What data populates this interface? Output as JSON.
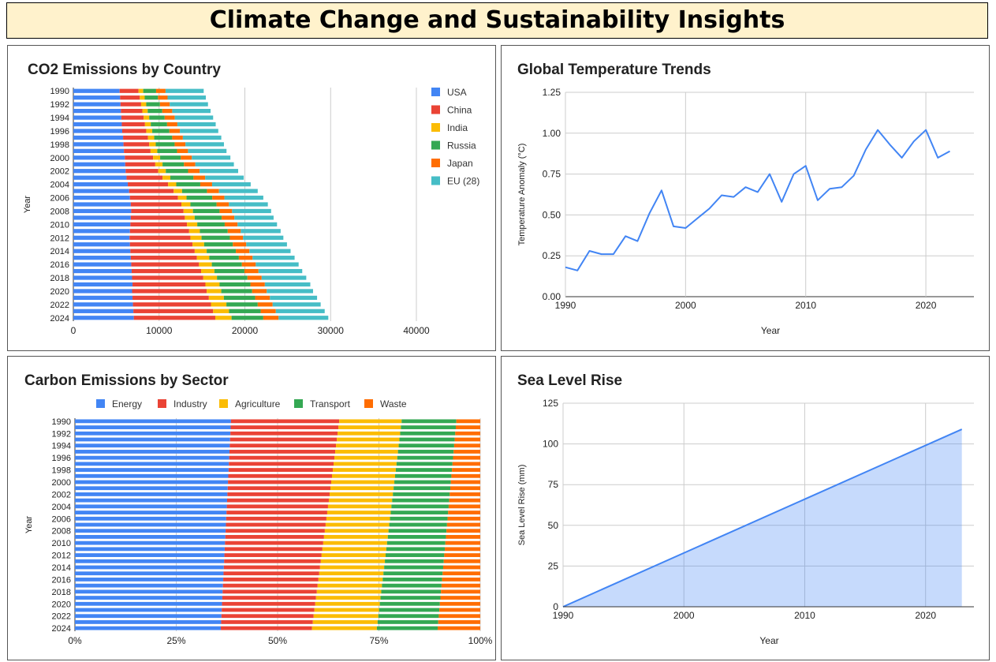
{
  "page_title": "Climate Change and Sustainability Insights",
  "chart_data": [
    {
      "id": "co2",
      "type": "bar",
      "orientation": "horizontal",
      "stacked": true,
      "title": "CO2 Emissions by Country",
      "xlabel": "",
      "ylabel": "Year",
      "categories": [
        "1990",
        "1991",
        "1992",
        "1993",
        "1994",
        "1995",
        "1996",
        "1997",
        "1998",
        "1999",
        "2000",
        "2001",
        "2002",
        "2003",
        "2004",
        "2005",
        "2006",
        "2007",
        "2008",
        "2009",
        "2010",
        "2011",
        "2012",
        "2013",
        "2014",
        "2015",
        "2016",
        "2017",
        "2018",
        "2019",
        "2020",
        "2021",
        "2022",
        "2023",
        "2024"
      ],
      "tick_labels": [
        "1990",
        "1992",
        "1994",
        "1996",
        "1998",
        "2000",
        "2002",
        "2004",
        "2006",
        "2008",
        "2010",
        "2012",
        "2014",
        "2016",
        "2018",
        "2020",
        "2022",
        "2024"
      ],
      "series": [
        {
          "name": "USA",
          "color": "#4285f4",
          "values": [
            5400,
            5450,
            5500,
            5550,
            5600,
            5650,
            5700,
            5800,
            5850,
            5900,
            6000,
            6050,
            6100,
            6200,
            6350,
            6500,
            6600,
            6700,
            6750,
            6700,
            6650,
            6600,
            6550,
            6600,
            6650,
            6700,
            6750,
            6800,
            6850,
            6900,
            6850,
            6900,
            6950,
            7000,
            7050
          ]
        },
        {
          "name": "China",
          "color": "#ea4335",
          "values": [
            2200,
            2300,
            2400,
            2500,
            2600,
            2700,
            2800,
            2900,
            3000,
            3100,
            3300,
            3500,
            3800,
            4200,
            4700,
            5200,
            5600,
            5900,
            6100,
            6300,
            6600,
            6900,
            7100,
            7300,
            7500,
            7700,
            7900,
            8100,
            8300,
            8500,
            8700,
            8900,
            9100,
            9300,
            9500
          ]
        },
        {
          "name": "India",
          "color": "#fbbc04",
          "values": [
            550,
            570,
            600,
            620,
            650,
            680,
            700,
            730,
            760,
            790,
            820,
            850,
            880,
            910,
            950,
            980,
            1000,
            1050,
            1100,
            1150,
            1200,
            1250,
            1300,
            1350,
            1400,
            1450,
            1500,
            1550,
            1600,
            1650,
            1700,
            1750,
            1800,
            1850,
            1900
          ]
        },
        {
          "name": "Russia",
          "color": "#34a853",
          "values": [
            1500,
            1550,
            1600,
            1700,
            1800,
            1900,
            2000,
            2100,
            2200,
            2300,
            2400,
            2500,
            2600,
            2700,
            2800,
            2900,
            3000,
            3050,
            3100,
            3150,
            3200,
            3250,
            3300,
            3350,
            3400,
            3450,
            3500,
            3500,
            3550,
            3600,
            3600,
            3650,
            3650,
            3700,
            3700
          ]
        },
        {
          "name": "Japan",
          "color": "#ff6d01",
          "values": [
            1100,
            1120,
            1140,
            1160,
            1180,
            1200,
            1220,
            1240,
            1260,
            1280,
            1300,
            1320,
            1340,
            1360,
            1380,
            1400,
            1420,
            1440,
            1460,
            1480,
            1500,
            1520,
            1540,
            1560,
            1580,
            1600,
            1620,
            1640,
            1660,
            1680,
            1700,
            1720,
            1740,
            1760,
            1780
          ]
        },
        {
          "name": "EU (28)",
          "color": "#46bdc6",
          "values": [
            4450,
            4460,
            4460,
            4470,
            4470,
            4470,
            4480,
            4480,
            4490,
            4490,
            4490,
            4500,
            4500,
            4500,
            4500,
            4520,
            4530,
            4540,
            4550,
            4570,
            4600,
            4650,
            4700,
            4750,
            4800,
            4900,
            5000,
            5100,
            5200,
            5300,
            5400,
            5500,
            5600,
            5700,
            5800
          ]
        }
      ],
      "xlim": [
        0,
        40000
      ],
      "x_ticks": [
        0,
        10000,
        20000,
        30000,
        40000
      ],
      "grid": true,
      "legend": "right"
    },
    {
      "id": "temp",
      "type": "line",
      "title": "Global Temperature Trends",
      "xlabel": "Year",
      "ylabel": "Temperature Anomaly (°C)",
      "x": [
        1990,
        1991,
        1992,
        1993,
        1994,
        1995,
        1996,
        1997,
        1998,
        1999,
        2000,
        2001,
        2002,
        2003,
        2004,
        2005,
        2006,
        2007,
        2008,
        2009,
        2010,
        2011,
        2012,
        2013,
        2014,
        2015,
        2016,
        2017,
        2018,
        2019,
        2020,
        2021,
        2022
      ],
      "series": [
        {
          "name": "",
          "color": "#4285f4",
          "values": [
            0.18,
            0.16,
            0.28,
            0.26,
            0.26,
            0.37,
            0.34,
            0.51,
            0.65,
            0.43,
            0.42,
            0.48,
            0.54,
            0.62,
            0.61,
            0.67,
            0.64,
            0.75,
            0.58,
            0.75,
            0.8,
            0.59,
            0.66,
            0.67,
            0.74,
            0.9,
            1.02,
            0.93,
            0.85,
            0.95,
            1.02,
            0.85,
            0.89
          ]
        }
      ],
      "xlim": [
        1990,
        2024
      ],
      "x_ticks": [
        1990,
        2000,
        2010,
        2020
      ],
      "ylim": [
        0,
        1.25
      ],
      "y_ticks": [
        "0.00",
        "0.25",
        "0.50",
        "0.75",
        "1.00",
        "1.25"
      ],
      "grid": true,
      "legend": "none"
    },
    {
      "id": "sector",
      "type": "bar",
      "orientation": "horizontal",
      "stacked": "percent",
      "title": "Carbon Emissions by Sector",
      "xlabel": "",
      "ylabel": "Year",
      "categories": [
        "1990",
        "1991",
        "1992",
        "1993",
        "1994",
        "1995",
        "1996",
        "1997",
        "1998",
        "1999",
        "2000",
        "2001",
        "2002",
        "2003",
        "2004",
        "2005",
        "2006",
        "2007",
        "2008",
        "2009",
        "2010",
        "2011",
        "2012",
        "2013",
        "2014",
        "2015",
        "2016",
        "2017",
        "2018",
        "2019",
        "2020",
        "2021",
        "2022",
        "2023",
        "2024"
      ],
      "tick_labels": [
        "1990",
        "1992",
        "1994",
        "1996",
        "1998",
        "2000",
        "2002",
        "2004",
        "2006",
        "2008",
        "2010",
        "2012",
        "2014",
        "2016",
        "2018",
        "2020",
        "2022",
        "2024"
      ],
      "series": [
        {
          "name": "Energy",
          "color": "#4285f4",
          "start_pct": 38.5,
          "end_pct": 36.0
        },
        {
          "name": "Industry",
          "color": "#ea4335",
          "start_pct": 26.7,
          "end_pct": 22.5
        },
        {
          "name": "Agriculture",
          "color": "#fbbc04",
          "start_pct": 15.4,
          "end_pct": 16.0
        },
        {
          "name": "Transport",
          "color": "#34a853",
          "start_pct": 13.5,
          "end_pct": 15.0
        },
        {
          "name": "Waste",
          "color": "#ff6d01",
          "start_pct": 5.9,
          "end_pct": 10.5
        }
      ],
      "x_ticks": [
        "0%",
        "25%",
        "50%",
        "75%",
        "100%"
      ],
      "grid": true,
      "legend": "top"
    },
    {
      "id": "sea",
      "type": "area",
      "title": "Sea Level Rise",
      "xlabel": "Year",
      "ylabel": "Sea Level Rise (mm)",
      "x": [
        1990,
        2023
      ],
      "series": [
        {
          "name": "",
          "color": "#4285f4",
          "values": [
            0,
            109
          ]
        }
      ],
      "xlim": [
        1990,
        2024
      ],
      "x_ticks": [
        1990,
        2000,
        2010,
        2020
      ],
      "ylim": [
        0,
        125
      ],
      "y_ticks": [
        0,
        25,
        50,
        75,
        100,
        125
      ],
      "grid": true,
      "legend": "none"
    }
  ]
}
